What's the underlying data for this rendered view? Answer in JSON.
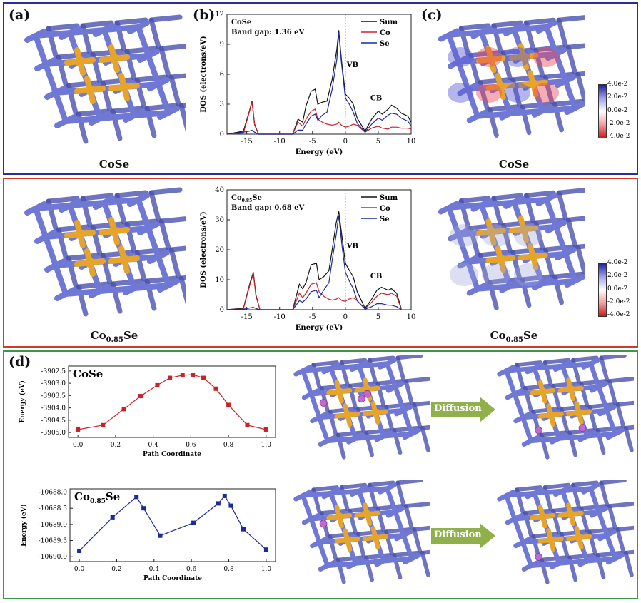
{
  "colors": {
    "box_top": "#2b2f9e",
    "box_mid": "#d03a2f",
    "box_bot": "#3a9a4a",
    "sum": "#111111",
    "co": "#c8232a",
    "se": "#1c2a9a",
    "bond": "#6f78d4",
    "co_atom": "#e6a52a",
    "li": "#c06ad0",
    "arrow": "#8fb04a"
  },
  "labels": {
    "a": "(a)",
    "b": "(b)",
    "c": "(c)",
    "d": "(d)"
  },
  "captions": {
    "top_left": "CoSe",
    "top_right": "CoSe",
    "mid_left_main": "Co",
    "mid_left_sub": "0.85",
    "mid_left_end": "Se",
    "mid_right_main": "Co",
    "mid_right_sub": "0.85",
    "mid_right_end": "Se"
  },
  "arrows": {
    "top": "Diffusion",
    "bottom": "Diffusion"
  },
  "colorbar": {
    "ticks": [
      "4.0e-2",
      "2.0e-2",
      "0.0e-2",
      "-2.0e-2",
      "-4.0e-2"
    ]
  },
  "chart_data": [
    {
      "type": "line",
      "id": "dos_cose",
      "title_main": "CoSe",
      "subtitle": "Band gap: 1.36 eV",
      "xlabel": "Energy (eV)",
      "ylabel": "DOS (electrons/eV)",
      "xlim": [
        -18,
        10
      ],
      "ylim": [
        0,
        12
      ],
      "xticks": [
        -15,
        -10,
        -5,
        0,
        5,
        10
      ],
      "yticks": [
        0,
        3,
        6,
        9,
        12
      ],
      "annotations": {
        "vb": "VB",
        "cb": "CB"
      },
      "legend": [
        "Sum",
        "Co",
        "Se"
      ],
      "series": [
        {
          "name": "Sum",
          "x": [
            -18,
            -15.5,
            -14.6,
            -14.2,
            -13.8,
            -13.2,
            -8,
            -7.2,
            -6.5,
            -6,
            -5.2,
            -4.6,
            -4.2,
            -3.5,
            -2.8,
            -2,
            -1.3,
            -1,
            -0.6,
            0,
            0.6,
            1.2,
            1.8,
            3,
            4,
            5,
            5.6,
            6.5,
            7,
            7.8,
            8.5,
            9.5,
            10
          ],
          "y": [
            0,
            0.3,
            2.3,
            3.3,
            1.0,
            0,
            0,
            1.5,
            1.2,
            2.8,
            4.3,
            4.5,
            3.0,
            3.2,
            3.3,
            5.5,
            8.5,
            10.4,
            7.5,
            4.0,
            3.6,
            3.0,
            1.6,
            0.3,
            1.5,
            2.3,
            2.0,
            2.5,
            2.9,
            2.6,
            2.1,
            1.8,
            1.2
          ]
        },
        {
          "name": "Co",
          "x": [
            -18,
            -15.5,
            -14.6,
            -14.2,
            -13.8,
            -13.2,
            -8,
            -7.2,
            -6.5,
            -6,
            -5.2,
            -4.6,
            -4.2,
            -3.5,
            -2.8,
            -2,
            -1.3,
            -1,
            -0.6,
            0,
            0.6,
            1.2,
            1.8,
            3,
            4,
            5,
            5.6,
            6.5,
            7,
            7.8,
            8.5,
            9.5,
            10
          ],
          "y": [
            0,
            0.1,
            2.2,
            3.2,
            0.9,
            0,
            0,
            1.2,
            0.8,
            1.5,
            2.3,
            2.5,
            1.5,
            1.2,
            1.0,
            0.9,
            1.0,
            1.2,
            0.9,
            0.7,
            0.8,
            1.0,
            0.9,
            0.2,
            0.6,
            0.8,
            0.6,
            0.5,
            0.7,
            0.7,
            0.6,
            0.6,
            0.5
          ]
        },
        {
          "name": "Se",
          "x": [
            -18,
            -15.5,
            -14.6,
            -14.2,
            -13.8,
            -13.2,
            -8,
            -7.2,
            -6.5,
            -6,
            -5.2,
            -4.6,
            -4.2,
            -3.5,
            -2.8,
            -2,
            -1.3,
            -1,
            -0.6,
            0,
            0.6,
            1.2,
            1.8,
            3,
            4,
            5,
            5.6,
            6.5,
            7,
            7.8,
            8.5,
            9.5,
            10
          ],
          "y": [
            0,
            0.2,
            0.3,
            0.4,
            0.2,
            0,
            0,
            0.4,
            0.4,
            1.0,
            1.8,
            2.0,
            1.4,
            1.9,
            2.2,
            4.5,
            7.5,
            10.2,
            7.2,
            3.6,
            3.0,
            2.2,
            1.1,
            0.2,
            1.0,
            1.6,
            1.4,
            1.9,
            2.1,
            2.0,
            1.6,
            1.3,
            0.8
          ]
        }
      ]
    },
    {
      "type": "line",
      "id": "dos_co085se",
      "title_main": "Co",
      "title_sub": "0.85",
      "title_end": "Se",
      "subtitle": "Band gap: 0.68 eV",
      "xlabel": "Energy (eV)",
      "ylabel": "DOS (electrons/eV)",
      "xlim": [
        -18,
        10
      ],
      "ylim": [
        0,
        40
      ],
      "xticks": [
        -15,
        -10,
        -5,
        0,
        5,
        10
      ],
      "yticks": [
        0,
        10,
        20,
        30,
        40
      ],
      "annotations": {
        "vb": "VB",
        "cb": "CB"
      },
      "legend": [
        "Sum",
        "Co",
        "Se"
      ],
      "series": [
        {
          "name": "Sum",
          "x": [
            -18,
            -15.5,
            -14.5,
            -14,
            -13.6,
            -13,
            -8,
            -7,
            -6.5,
            -6,
            -5.2,
            -4.4,
            -4,
            -3.3,
            -2.5,
            -2,
            -1.4,
            -1,
            -0.5,
            0,
            0.5,
            1.2,
            1.8,
            3,
            4,
            4.8,
            5.5,
            6.5,
            7,
            7.8,
            8.5
          ],
          "y": [
            0,
            0.5,
            9,
            12.5,
            5,
            0,
            0,
            8.5,
            7,
            9,
            15,
            15.5,
            10,
            11,
            13,
            20,
            29,
            32.8,
            24,
            15.5,
            13.5,
            11,
            6,
            0.5,
            3.5,
            6.5,
            7.5,
            6.5,
            7,
            5.5,
            0.3
          ]
        },
        {
          "name": "Co",
          "x": [
            -18,
            -15.5,
            -14.5,
            -14,
            -13.6,
            -13,
            -8,
            -7,
            -6.5,
            -6,
            -5.2,
            -4.4,
            -4,
            -3.3,
            -2.5,
            -2,
            -1.4,
            -1,
            -0.5,
            0,
            0.5,
            1.2,
            1.8,
            3,
            4,
            4.8,
            5.5,
            6.5,
            7,
            7.8,
            8.5
          ],
          "y": [
            0,
            0.3,
            8.5,
            12,
            4.6,
            0,
            0,
            5.5,
            4,
            5.5,
            8.5,
            9,
            6,
            4.5,
            3.5,
            3.2,
            3.5,
            4,
            3,
            2.8,
            3.5,
            4,
            3,
            0.3,
            2.5,
            4.5,
            5.5,
            5,
            5.5,
            4.5,
            0.2
          ]
        },
        {
          "name": "Se",
          "x": [
            -18,
            -15.5,
            -14.5,
            -14,
            -13.6,
            -13,
            -8,
            -7,
            -6.5,
            -6,
            -5.2,
            -4.4,
            -4,
            -3.3,
            -2.5,
            -2,
            -1.4,
            -1,
            -0.5,
            0,
            0.5,
            1.2,
            1.8,
            3,
            4,
            4.8,
            5.5,
            6.5,
            7,
            7.8,
            8.5
          ],
          "y": [
            0,
            0.2,
            0.6,
            0.8,
            0.4,
            0,
            0,
            3,
            2.5,
            3.5,
            6,
            6.5,
            4,
            6.5,
            9,
            16.5,
            25,
            31.5,
            21,
            12.5,
            10,
            7,
            3,
            0.2,
            1,
            2,
            2,
            1.5,
            1.5,
            1,
            0.1
          ]
        }
      ]
    },
    {
      "type": "line",
      "id": "neb_cose",
      "title_main": "CoSe",
      "xlabel": "Path Coordinate",
      "ylabel": "Energy (eV)",
      "xlim": [
        -0.05,
        1.05
      ],
      "ylim": [
        -3905.2,
        -3902.3
      ],
      "xticks": [
        0.0,
        0.2,
        0.4,
        0.6,
        0.8,
        1.0
      ],
      "yticks": [
        -3905.0,
        -3904.5,
        -3904.0,
        -3903.5,
        -3903.0,
        -3902.5
      ],
      "series": [
        {
          "name": "",
          "x": [
            0.0,
            0.133,
            0.244,
            0.333,
            0.422,
            0.489,
            0.556,
            0.611,
            0.667,
            0.733,
            0.8,
            0.9,
            1.0
          ],
          "y": [
            -3904.88,
            -3904.7,
            -3904.05,
            -3903.52,
            -3903.08,
            -3902.78,
            -3902.67,
            -3902.65,
            -3902.78,
            -3903.22,
            -3903.88,
            -3904.7,
            -3904.88
          ]
        }
      ]
    },
    {
      "type": "line",
      "id": "neb_co085se",
      "title_main": "Co",
      "title_sub": "0.85",
      "title_end": "Se",
      "xlabel": "Path Coordinate",
      "ylabel": "Energy (eV)",
      "xlim": [
        -0.05,
        1.05
      ],
      "ylim": [
        -10690.15,
        -10687.9
      ],
      "xticks": [
        0.0,
        0.2,
        0.4,
        0.6,
        0.8,
        1.0
      ],
      "yticks": [
        -10690.0,
        -10689.5,
        -10689.0,
        -10688.5,
        -10688.0
      ],
      "series": [
        {
          "name": "",
          "x": [
            0.0,
            0.178,
            0.306,
            0.344,
            0.433,
            0.611,
            0.744,
            0.778,
            0.811,
            0.878,
            1.0
          ],
          "y": [
            -10689.82,
            -10688.78,
            -10688.15,
            -10688.5,
            -10689.35,
            -10688.95,
            -10688.35,
            -10688.12,
            -10688.42,
            -10689.15,
            -10689.78
          ]
        }
      ]
    }
  ]
}
